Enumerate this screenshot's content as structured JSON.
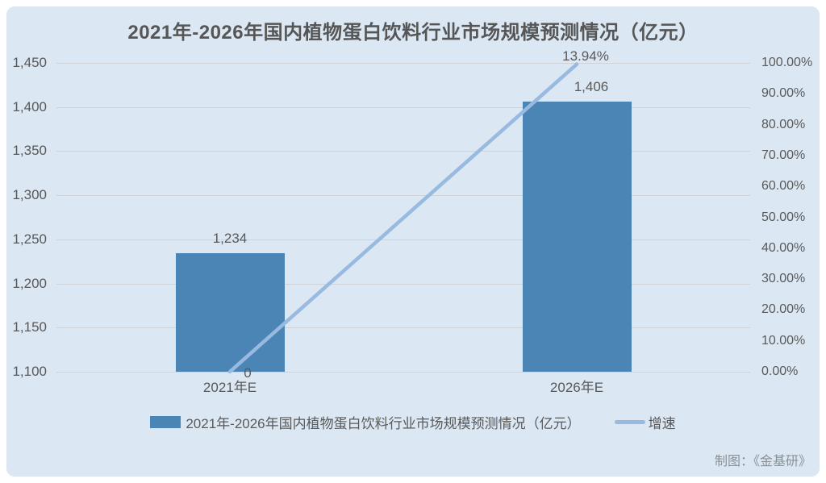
{
  "title": "2021年-2026年国内植物蛋白饮料行业市场规模预测情况（亿元）",
  "credit": "制图：《金基研》",
  "colors": {
    "panel_bg": "#dbe7f3",
    "bar": "#4b85b5",
    "line": "#98bae0",
    "grid": "#cfd3d8",
    "text": "#595959",
    "title": "#565656",
    "watermark": "#8a9096"
  },
  "chart_data": {
    "type": "bar",
    "subtype": "combo-bar-line-dual-axis",
    "title": "2021年-2026年国内植物蛋白饮料行业市场规模预测情况（亿元）",
    "categories": [
      "2021年E",
      "2026年E"
    ],
    "series": [
      {
        "name": "2021年-2026年国内植物蛋白饮料行业市场规模预测情况（亿元）",
        "type": "bar",
        "axis": "left",
        "values": [
          1234,
          1406
        ],
        "data_labels": [
          "1,234",
          "1,406"
        ]
      },
      {
        "name": "增速",
        "type": "line",
        "axis": "right",
        "values": [
          0,
          13.94
        ],
        "data_labels": [
          "0",
          "13.94%"
        ]
      }
    ],
    "left_axis": {
      "min": 1100,
      "max": 1450,
      "step": 50,
      "tick_values": [
        1100,
        1150,
        1200,
        1250,
        1300,
        1350,
        1400,
        1450
      ],
      "tick_labels": [
        "1,100",
        "1,150",
        "1,200",
        "1,250",
        "1,300",
        "1,350",
        "1,400",
        "1,450"
      ]
    },
    "right_axis": {
      "min": 0,
      "max": 100,
      "step": 10,
      "tick_values": [
        0,
        10,
        20,
        30,
        40,
        50,
        60,
        70,
        80,
        90,
        100
      ],
      "tick_labels": [
        "0.00%",
        "10.00%",
        "20.00%",
        "30.00%",
        "40.00%",
        "50.00%",
        "60.00%",
        "70.00%",
        "80.00%",
        "90.00%",
        "100.00%"
      ]
    },
    "line_display_ylim": [
      0,
      14
    ],
    "grid": true,
    "legend_position": "bottom"
  },
  "legend": {
    "bar_label": "2021年-2026年国内植物蛋白饮料行业市场规模预测情况（亿元）",
    "line_label": "增速"
  }
}
